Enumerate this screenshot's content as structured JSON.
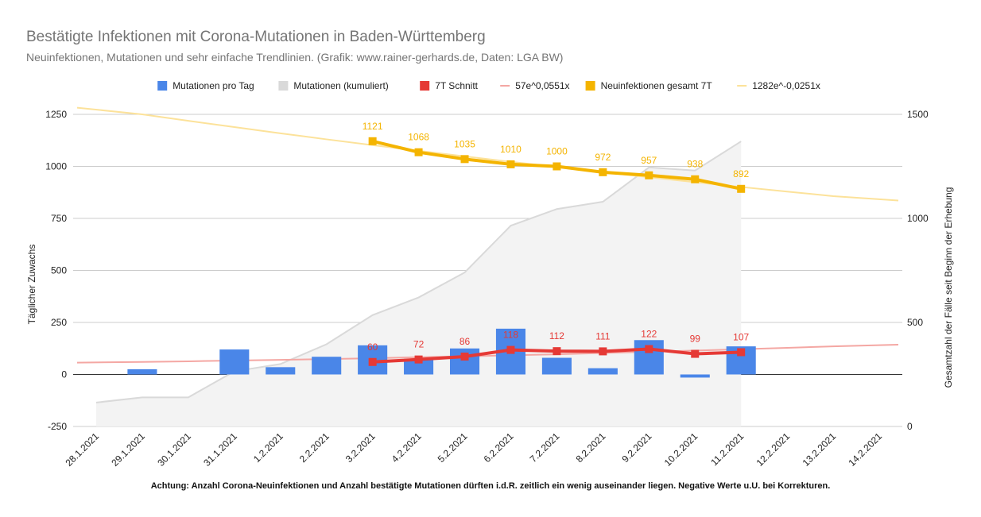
{
  "chart_data": {
    "type": "combo",
    "title": "Bestätigte Infektionen mit Corona-Mutationen in Baden-Württemberg",
    "subtitle": "Neuinfektionen, Mutationen und sehr einfache Trendlinien.  (Grafik: www.rainer-gerhards.de, Daten: LGA BW)",
    "footnote": "Achtung: Anzahl Corona-Neuinfektionen und Anzahl bestätigte Mutationen dürften i.d.R. zeitlich ein wenig auseinander liegen. Negative Werte u.U. bei Korrekturen.",
    "categories": [
      "28.1.2021",
      "29.1.2021",
      "30.1.2021",
      "31.1.2021",
      "1.2.2021",
      "2.2.2021",
      "3.2.2021",
      "4.2.2021",
      "5.2.2021",
      "6.2.2021",
      "7.2.2021",
      "8.2.2021",
      "9.2.2021",
      "10.2.2021",
      "11.2.2021",
      "12.2.2021",
      "13.2.2021",
      "14.2.2021"
    ],
    "y_left": {
      "label": "Täglicher Zuwachs",
      "min": -250,
      "max": 1250,
      "ticks": [
        -250,
        0,
        250,
        500,
        750,
        1000,
        1250
      ]
    },
    "y_right": {
      "label": "Gesamtzahl der Fälle seit Beginn der Erhebung",
      "min": 0,
      "max": 1500,
      "ticks": [
        0,
        500,
        1000,
        1500
      ]
    },
    "grid": true,
    "legend_position": "top",
    "series": [
      {
        "name": "Mutationen pro Tag",
        "kind": "bar",
        "axis": "left",
        "color": "#4a86e8",
        "values": [
          null,
          25,
          null,
          120,
          35,
          85,
          140,
          75,
          125,
          220,
          80,
          30,
          165,
          -15,
          135,
          null,
          null,
          null
        ]
      },
      {
        "name": "Mutationen (kumuliert)",
        "kind": "area",
        "axis": "right",
        "color": "#d9d9d9",
        "values": [
          115,
          140,
          140,
          265,
          300,
          395,
          535,
          620,
          740,
          965,
          1045,
          1080,
          1245,
          1230,
          1370,
          null,
          null,
          null
        ]
      },
      {
        "name": "7T Schnitt",
        "kind": "line",
        "axis": "left",
        "color": "#e53935",
        "values": [
          null,
          null,
          null,
          null,
          null,
          null,
          60,
          72,
          86,
          118,
          112,
          111,
          122,
          99,
          107,
          null,
          null,
          null
        ],
        "labels": [
          "",
          "",
          "",
          "",
          "",
          "",
          "60",
          "72",
          "86",
          "118",
          "112",
          "111",
          "122",
          "99",
          "107",
          "",
          "",
          ""
        ]
      },
      {
        "name": "57e^0,0551x",
        "kind": "trend",
        "axis": "left",
        "color": "#f4a7a3",
        "values": [
          57,
          60,
          63,
          67,
          70,
          74,
          78,
          83,
          87,
          92,
          97,
          103,
          109,
          115,
          121,
          128,
          135,
          143
        ]
      },
      {
        "name": "Neuinfektionen gesamt 7T",
        "kind": "line",
        "axis": "left",
        "color": "#f4b400",
        "values": [
          null,
          null,
          null,
          null,
          null,
          null,
          1121,
          1068,
          1035,
          1010,
          1000,
          972,
          957,
          938,
          892,
          null,
          null,
          null
        ],
        "labels": [
          "",
          "",
          "",
          "",
          "",
          "",
          "1121",
          "1068",
          "1035",
          "1010",
          "1000",
          "972",
          "957",
          "938",
          "892",
          "",
          "",
          ""
        ]
      },
      {
        "name": "1282e^-0,0251x",
        "kind": "trend",
        "axis": "left",
        "color": "#fce29a",
        "values": [
          1282,
          1250,
          1219,
          1189,
          1159,
          1130,
          1102,
          1075,
          1048,
          1022,
          997,
          972,
          948,
          924,
          901,
          879,
          857,
          836
        ]
      }
    ]
  }
}
